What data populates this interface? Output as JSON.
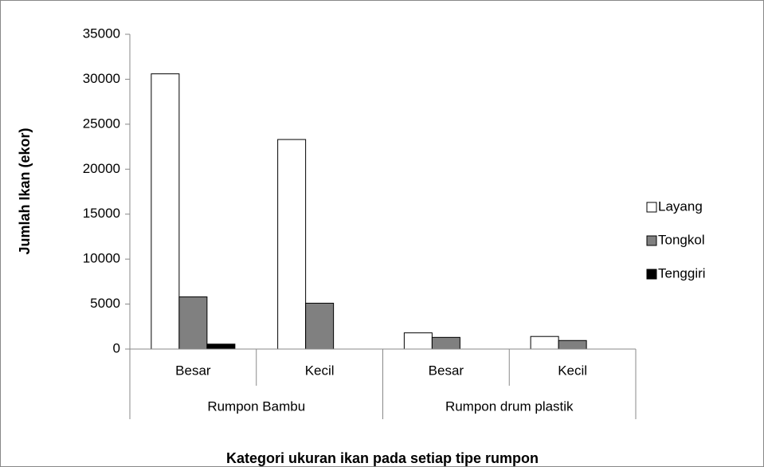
{
  "chart_data": {
    "type": "bar",
    "x_label": "Kategori ukuran ikan pada setiap tipe rumpon",
    "y_label": "Jumlah Ikan (ekor)",
    "categories": [
      "Besar",
      "Kecil",
      "Besar",
      "Kecil"
    ],
    "category_groups": [
      "Rumpon Bambu",
      "Rumpon drum plastik"
    ],
    "series": [
      {
        "name": "Layang",
        "color": "#ffffff",
        "values": [
          30600,
          23300,
          1800,
          1400
        ]
      },
      {
        "name": "Tongkol",
        "color": "#808080",
        "values": [
          5800,
          5100,
          1300,
          950
        ]
      },
      {
        "name": "Tenggiri",
        "color": "#000000",
        "values": [
          550,
          0,
          0,
          0
        ]
      }
    ],
    "ylim": [
      0,
      35000
    ],
    "yticks": [
      0,
      5000,
      10000,
      15000,
      20000,
      25000,
      30000,
      35000
    ],
    "legend": "right"
  }
}
